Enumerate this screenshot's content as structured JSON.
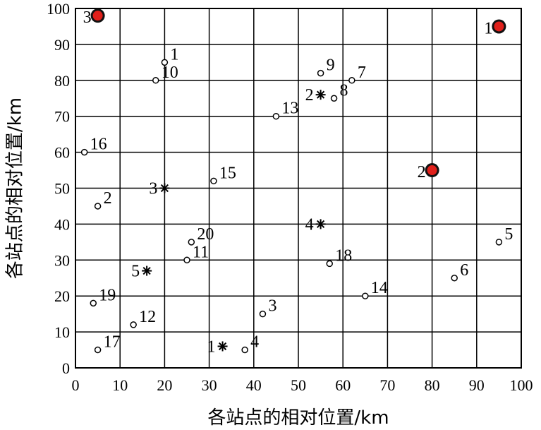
{
  "chart_data": {
    "type": "scatter",
    "title": "",
    "xlabel": "各站点的相对位置/km",
    "ylabel": "各站点的相对位置/km",
    "xlim": [
      0,
      100
    ],
    "ylim": [
      0,
      100
    ],
    "xticks": [
      0,
      10,
      20,
      30,
      40,
      50,
      60,
      70,
      80,
      90,
      100
    ],
    "yticks": [
      0,
      10,
      20,
      30,
      40,
      50,
      60,
      70,
      80,
      90,
      100
    ],
    "grid": true,
    "series": [
      {
        "marker": "circle-open",
        "color": "#000000",
        "points": [
          {
            "label": "1",
            "x": 20,
            "y": 85
          },
          {
            "label": "2",
            "x": 5,
            "y": 45
          },
          {
            "label": "3",
            "x": 42,
            "y": 15
          },
          {
            "label": "4",
            "x": 38,
            "y": 5
          },
          {
            "label": "5",
            "x": 95,
            "y": 35
          },
          {
            "label": "6",
            "x": 85,
            "y": 25
          },
          {
            "label": "7",
            "x": 62,
            "y": 80
          },
          {
            "label": "8",
            "x": 58,
            "y": 75
          },
          {
            "label": "9",
            "x": 55,
            "y": 82
          },
          {
            "label": "10",
            "x": 18,
            "y": 80
          },
          {
            "label": "11",
            "x": 25,
            "y": 30
          },
          {
            "label": "12",
            "x": 13,
            "y": 12
          },
          {
            "label": "13",
            "x": 45,
            "y": 70
          },
          {
            "label": "14",
            "x": 65,
            "y": 20
          },
          {
            "label": "15",
            "x": 31,
            "y": 52
          },
          {
            "label": "16",
            "x": 2,
            "y": 60
          },
          {
            "label": "17",
            "x": 5,
            "y": 5
          },
          {
            "label": "18",
            "x": 57,
            "y": 29
          },
          {
            "label": "19",
            "x": 4,
            "y": 18
          },
          {
            "label": "20",
            "x": 26,
            "y": 35
          }
        ]
      },
      {
        "marker": "asterisk",
        "color": "#000000",
        "points": [
          {
            "label": "1",
            "x": 33,
            "y": 6
          },
          {
            "label": "2",
            "x": 55,
            "y": 76
          },
          {
            "label": "3",
            "x": 20,
            "y": 50
          },
          {
            "label": "4",
            "x": 55,
            "y": 40
          },
          {
            "label": "5",
            "x": 16,
            "y": 27
          }
        ]
      },
      {
        "marker": "circle-filled",
        "color": "#e0201b",
        "points": [
          {
            "label": "1",
            "x": 95,
            "y": 95
          },
          {
            "label": "2",
            "x": 80,
            "y": 55
          },
          {
            "label": "3",
            "x": 5,
            "y": 98
          }
        ]
      }
    ]
  }
}
